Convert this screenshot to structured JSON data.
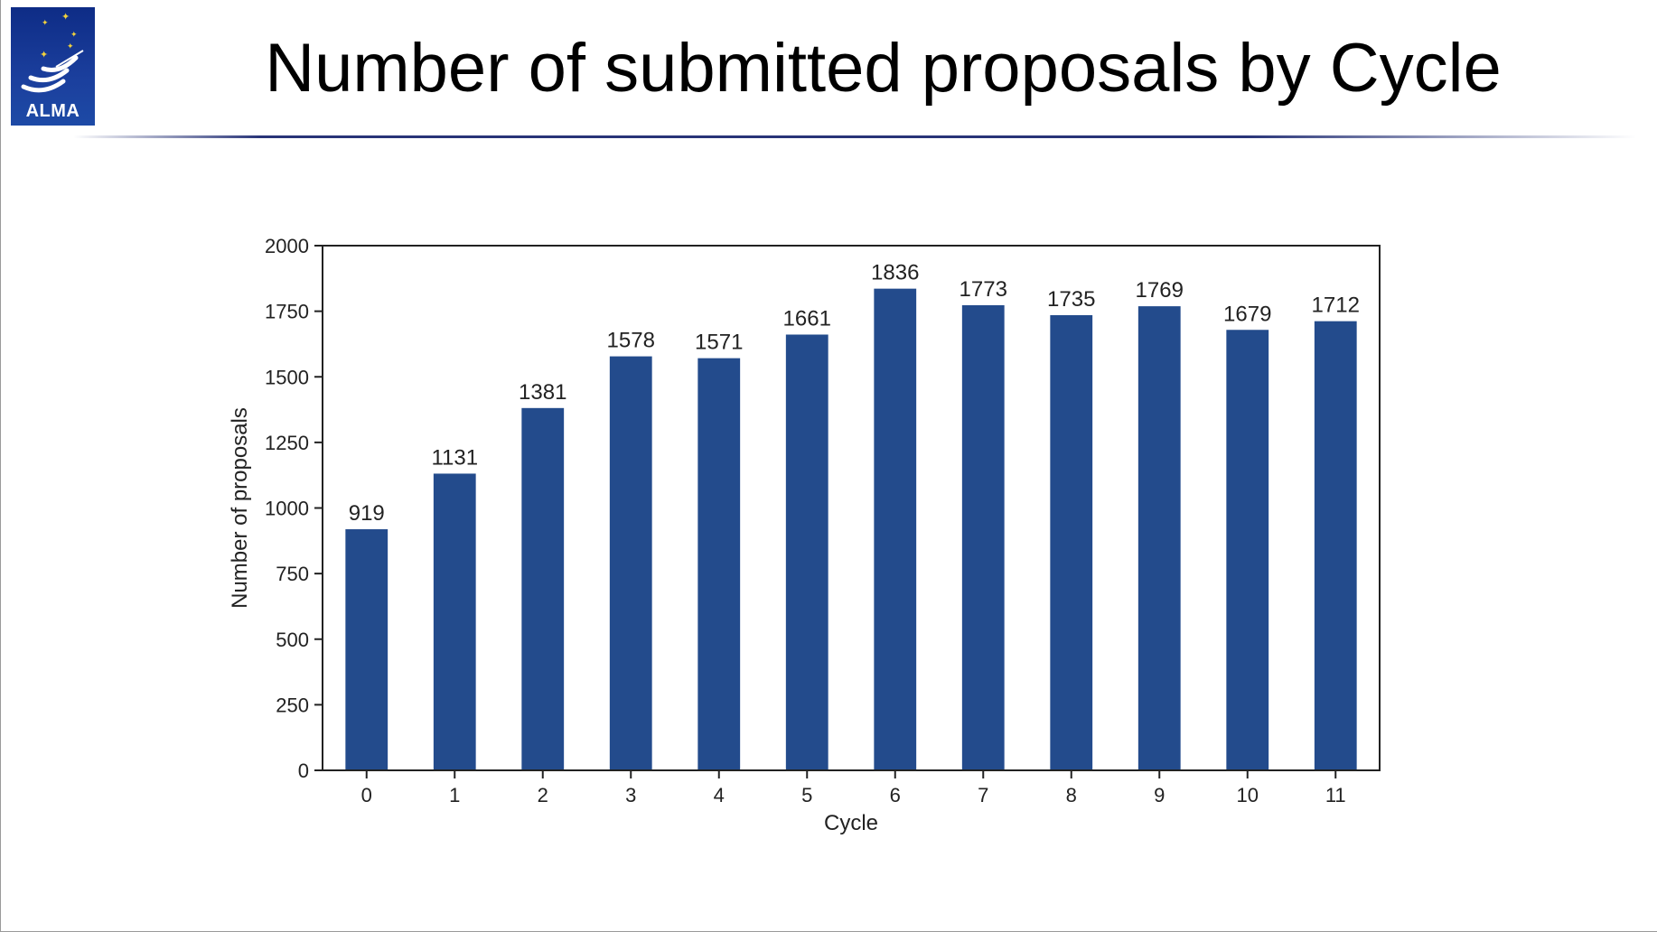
{
  "logo": {
    "text": "ALMA"
  },
  "slide": {
    "title": "Number of submitted proposals by Cycle"
  },
  "colors": {
    "bar": "#234b8c",
    "title_rule": "#283478",
    "logo_bg": "#12328f"
  },
  "icons": {
    "logo": "alma-antenna-logo"
  },
  "chart_data": {
    "type": "bar",
    "title": "",
    "xlabel": "Cycle",
    "ylabel": "Number of proposals",
    "categories": [
      "0",
      "1",
      "2",
      "3",
      "4",
      "5",
      "6",
      "7",
      "8",
      "9",
      "10",
      "11"
    ],
    "values": [
      919,
      1131,
      1381,
      1578,
      1571,
      1661,
      1836,
      1773,
      1735,
      1769,
      1679,
      1712
    ],
    "data_labels": [
      "919",
      "1131",
      "1381",
      "1578",
      "1571",
      "1661",
      "1836",
      "1773",
      "1735",
      "1769",
      "1679",
      "1712"
    ],
    "ylim": [
      0,
      2000
    ],
    "yticks": [
      0,
      250,
      500,
      750,
      1000,
      1250,
      1500,
      1750,
      2000
    ],
    "ytick_labels": [
      "0",
      "250",
      "500",
      "750",
      "1000",
      "1250",
      "1500",
      "1750",
      "2000"
    ],
    "grid": false,
    "legend": "none"
  }
}
